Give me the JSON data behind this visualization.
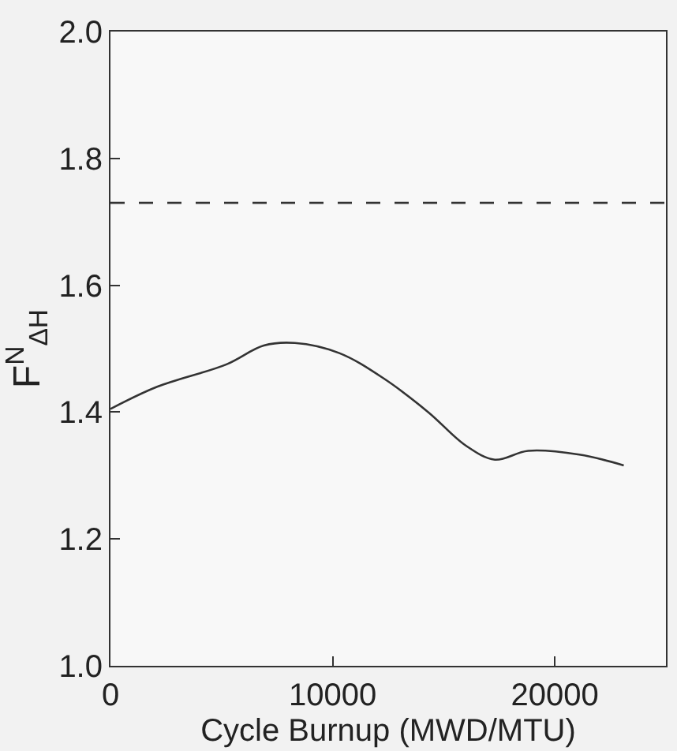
{
  "chart_data": {
    "type": "line",
    "xlabel": "Cycle Burnup (MWD/MTU)",
    "ylabel": "F$^{N}$$_{ΔH}$",
    "x": [
      0,
      2100,
      5200,
      6900,
      8300,
      10300,
      12300,
      14300,
      16000,
      17300,
      18800,
      21100,
      23100
    ],
    "series": [
      {
        "color": "#333333",
        "values": [
          1.405,
          1.44,
          1.475,
          1.505,
          1.509,
          1.493,
          1.453,
          1.4,
          1.347,
          1.325,
          1.339,
          1.333,
          1.316
        ]
      }
    ],
    "xlim": [
      0,
      25000
    ],
    "xticks": [
      0,
      10000,
      20000
    ],
    "ylim": [
      1.0,
      2.0
    ],
    "yticks": [
      {
        "value": 1.0,
        "label": "1.0"
      },
      1.2,
      1.4,
      1.6,
      1.8,
      {
        "value": 2.0,
        "label": "2.0"
      }
    ],
    "ref_lines": [
      {
        "axis": "y",
        "value": 1.73,
        "line_style": "dashed",
        "color": "#333333"
      }
    ],
    "grid": false,
    "legend": false,
    "line_style": "solid",
    "marker": "none"
  }
}
